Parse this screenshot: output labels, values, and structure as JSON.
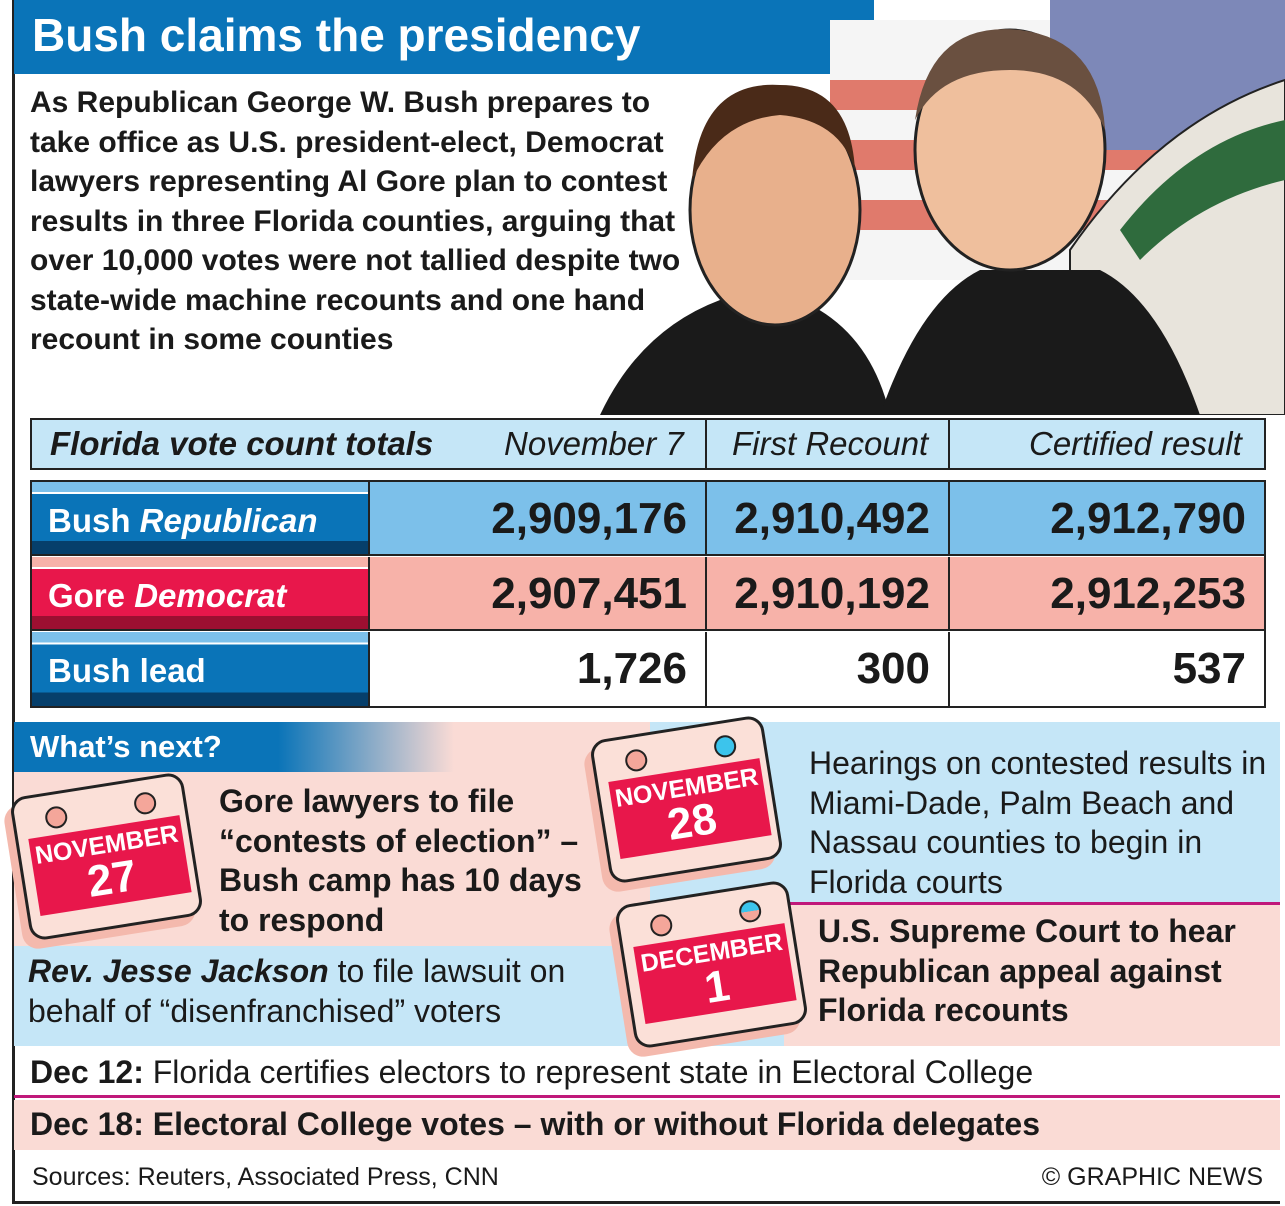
{
  "title": "Bush claims the presidency",
  "intro": "As Republican George W. Bush prepares to take office as U.S. president-elect, Democrat lawyers representing Al Gore plan to contest results in three Florida counties, arguing that over 10,000 votes were not tallied despite two state-wide machine recounts and one hand recount in some counties",
  "table": {
    "title": "Florida vote count totals",
    "columns": [
      "November 7",
      "First Recount",
      "Certified result"
    ],
    "rows": [
      {
        "name": "Bush",
        "party": "Republican",
        "values": [
          "2,909,176",
          "2,910,492",
          "2,912,790"
        ]
      },
      {
        "name": "Gore",
        "party": "Democrat",
        "values": [
          "2,907,451",
          "2,910,192",
          "2,912,253"
        ]
      },
      {
        "name": "Bush lead",
        "party": "",
        "values": [
          "1,726",
          "300",
          "537"
        ]
      }
    ]
  },
  "next": {
    "heading": "What’s next?",
    "events": [
      {
        "month": "NOVEMBER",
        "day": "27",
        "text": "Gore lawyers to file “contests of election” – Bush camp has 10 days to respond"
      },
      {
        "month": "NOVEMBER",
        "day": "28",
        "text": "Hearings on contested results in Miami-Dade, Palm Beach and Nassau counties to begin in Florida courts"
      },
      {
        "month": "DECEMBER",
        "day": "1",
        "text": "U.S. Supreme Court to hear Republican appeal against Florida recounts"
      }
    ],
    "jackson_bold": "Rev. Jesse Jackson",
    "jackson_text": " to file lawsuit on behalf of “disenfranchised” voters"
  },
  "dec12": {
    "label": "Dec 12:",
    "text": " Florida certifies electors to represent state in Electoral College"
  },
  "dec18": {
    "label": "Dec 18:",
    "text": " Electoral College votes – with or without Florida delegates"
  },
  "sources": "Sources: Reuters, Associated Press, CNN",
  "credit": "© GRAPHIC NEWS"
}
